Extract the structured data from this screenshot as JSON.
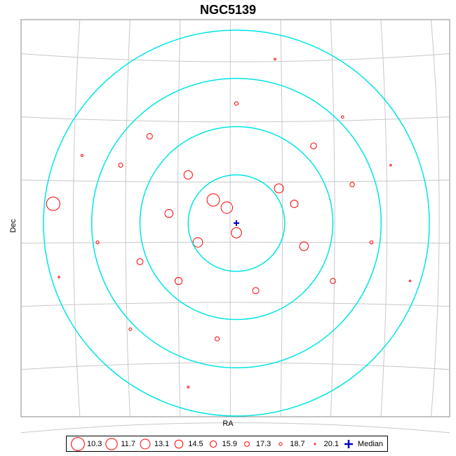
{
  "chart_data": {
    "type": "scatter",
    "title": "NGC5139",
    "xlabel": "RA",
    "ylabel": "Dec",
    "grid": true,
    "legend_placement": "bottom",
    "marker_color": "#ff0000",
    "ring_color": "#00e5e5",
    "median_color": "#0000cc",
    "legend": [
      {
        "label": "10.3",
        "magnitude": 10.3
      },
      {
        "label": "11.7",
        "magnitude": 11.7
      },
      {
        "label": "13.1",
        "magnitude": 13.1
      },
      {
        "label": "14.5",
        "magnitude": 14.5
      },
      {
        "label": "15.9",
        "magnitude": 15.9
      },
      {
        "label": "17.3",
        "magnitude": 17.3
      },
      {
        "label": "18.7",
        "magnitude": 18.7
      },
      {
        "label": "20.1",
        "magnitude": 20.1
      },
      {
        "label": "Median",
        "marker": "plus"
      }
    ],
    "rings_relative_radius": [
      0.25,
      0.5,
      0.75,
      1.0
    ],
    "points": [
      {
        "x": -0.05,
        "y": 0.08,
        "mag": 13.1
      },
      {
        "x": -0.12,
        "y": 0.12,
        "mag": 12.4
      },
      {
        "x": 0.0,
        "y": -0.05,
        "mag": 14.0
      },
      {
        "x": -0.2,
        "y": -0.1,
        "mag": 14.5
      },
      {
        "x": -0.25,
        "y": 0.25,
        "mag": 15.2
      },
      {
        "x": 0.22,
        "y": 0.18,
        "mag": 14.8
      },
      {
        "x": 0.3,
        "y": 0.1,
        "mag": 15.9
      },
      {
        "x": 0.35,
        "y": -0.12,
        "mag": 15.1
      },
      {
        "x": -0.35,
        "y": 0.05,
        "mag": 15.5
      },
      {
        "x": -0.3,
        "y": -0.3,
        "mag": 16.2
      },
      {
        "x": 0.1,
        "y": -0.35,
        "mag": 16.8
      },
      {
        "x": 0.4,
        "y": 0.4,
        "mag": 17.1
      },
      {
        "x": -0.45,
        "y": 0.45,
        "mag": 17.3
      },
      {
        "x": -0.5,
        "y": -0.2,
        "mag": 16.9
      },
      {
        "x": 0.5,
        "y": -0.3,
        "mag": 17.6
      },
      {
        "x": 0.6,
        "y": 0.2,
        "mag": 18.1
      },
      {
        "x": -0.6,
        "y": 0.3,
        "mag": 18.3
      },
      {
        "x": 0.0,
        "y": 0.62,
        "mag": 18.7
      },
      {
        "x": -0.1,
        "y": -0.6,
        "mag": 18.2
      },
      {
        "x": 0.7,
        "y": -0.1,
        "mag": 19.0
      },
      {
        "x": -0.72,
        "y": -0.1,
        "mag": 19.2
      },
      {
        "x": 0.55,
        "y": 0.55,
        "mag": 19.5
      },
      {
        "x": -0.55,
        "y": -0.55,
        "mag": 19.4
      },
      {
        "x": 0.8,
        "y": 0.3,
        "mag": 20.1
      },
      {
        "x": -0.8,
        "y": 0.35,
        "mag": 19.8
      },
      {
        "x": 0.2,
        "y": 0.85,
        "mag": 20.0
      },
      {
        "x": -0.25,
        "y": -0.85,
        "mag": 19.9
      },
      {
        "x": 0.9,
        "y": -0.3,
        "mag": 20.1
      },
      {
        "x": -0.92,
        "y": -0.28,
        "mag": 20.1
      },
      {
        "x": -0.95,
        "y": 0.1,
        "mag": 11.7
      }
    ]
  }
}
